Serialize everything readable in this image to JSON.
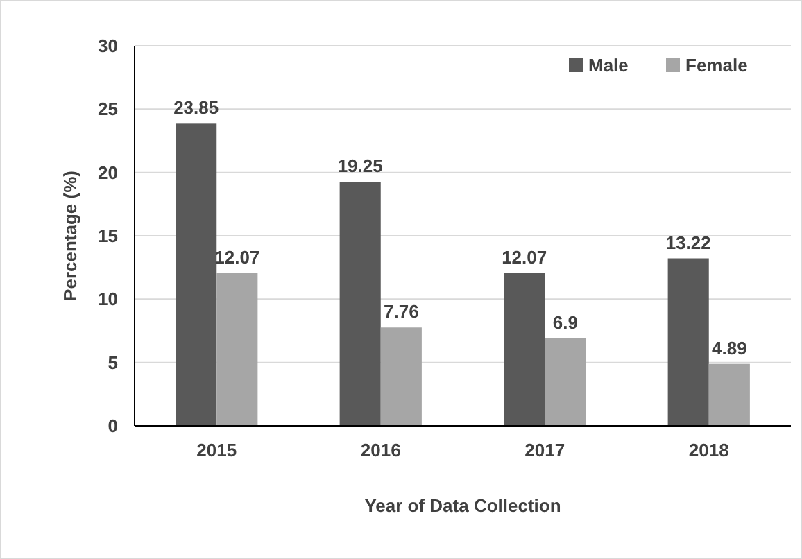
{
  "chart_data": {
    "type": "bar",
    "xlabel": "Year of Data Collection",
    "ylabel": "Percentage (%)",
    "categories": [
      "2015",
      "2016",
      "2017",
      "2018"
    ],
    "series": [
      {
        "name": "Male",
        "color": "#595959",
        "values": [
          23.85,
          19.25,
          12.07,
          13.22
        ]
      },
      {
        "name": "Female",
        "color": "#a6a6a6",
        "values": [
          12.07,
          7.76,
          6.9,
          4.89
        ]
      }
    ],
    "ylim": [
      0,
      30
    ],
    "yticks": [
      0,
      5,
      10,
      15,
      20,
      25,
      30
    ],
    "grid": "y",
    "legend": "top right",
    "data_labels": true
  }
}
